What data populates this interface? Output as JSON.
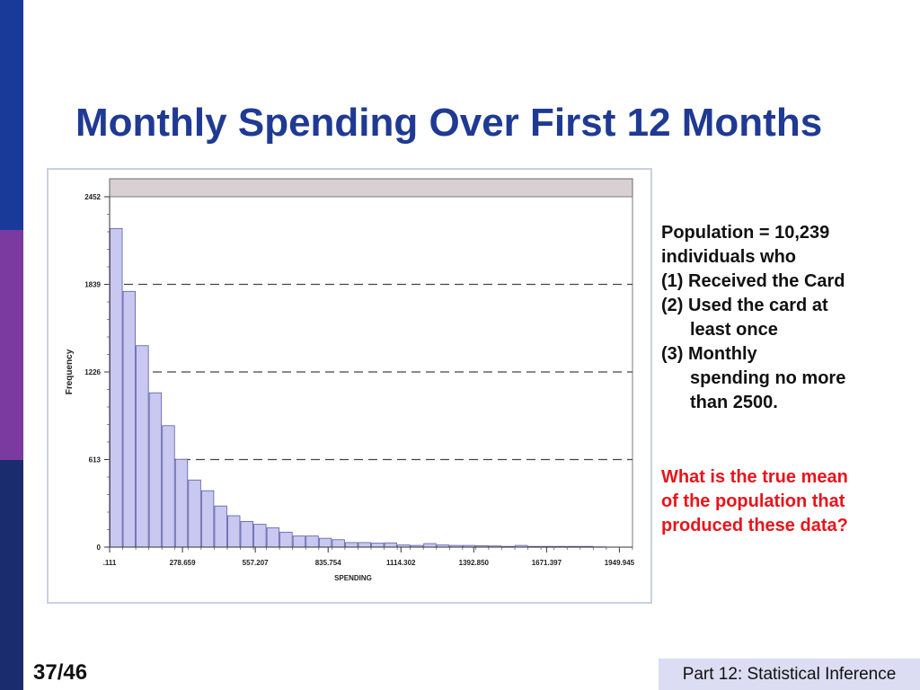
{
  "slide": {
    "title": "Monthly Spending Over First 12 Months",
    "page_number": "37/46",
    "footer": "Part 12: Statistical Inference",
    "band_colors": [
      "#1a3a9a",
      "#7a3aa0",
      "#1a2b6e"
    ]
  },
  "notes": {
    "lines": [
      {
        "text": "Population = 10,239",
        "indent": false
      },
      {
        "text": "individuals who",
        "indent": false
      },
      {
        "text": "(1) Received the Card",
        "indent": false
      },
      {
        "text": "(2) Used the card at",
        "indent": false
      },
      {
        "text": "least once",
        "indent": true
      },
      {
        "text": "(3) Monthly",
        "indent": false
      },
      {
        "text": "spending no more",
        "indent": true
      },
      {
        "text": "than 2500.",
        "indent": true
      }
    ],
    "question_lines": [
      "What is the true mean",
      "of the population that",
      "produced these data?"
    ]
  },
  "chart_data": {
    "type": "bar",
    "xlabel": "SPENDING",
    "ylabel": "Frequency",
    "ylim": [
      0,
      2452
    ],
    "yticks": [
      "0",
      "613",
      "1226",
      "1839",
      "2452"
    ],
    "ytick_values": [
      0,
      613,
      1226,
      1839,
      2452
    ],
    "xticks": [
      ".111",
      "278.659",
      "557.207",
      "835.754",
      "1114.302",
      "1392.850",
      "1671.397",
      "1949.945"
    ],
    "xtick_values": [
      0.111,
      278.659,
      557.207,
      835.754,
      1114.302,
      1392.85,
      1671.397,
      1949.945
    ],
    "bin_width": 50,
    "bar_color": "#c8c8f0",
    "bar_edge": "#5a5aa8",
    "values": [
      2230,
      1790,
      1410,
      1080,
      850,
      615,
      470,
      395,
      288,
      220,
      180,
      160,
      135,
      105,
      78,
      78,
      62,
      52,
      32,
      32,
      28,
      30,
      15,
      12,
      25,
      15,
      12,
      12,
      10,
      8,
      5,
      12,
      5,
      5,
      5,
      5,
      5,
      2,
      0,
      0
    ],
    "grid": "dashed horizontal at y ticks"
  }
}
